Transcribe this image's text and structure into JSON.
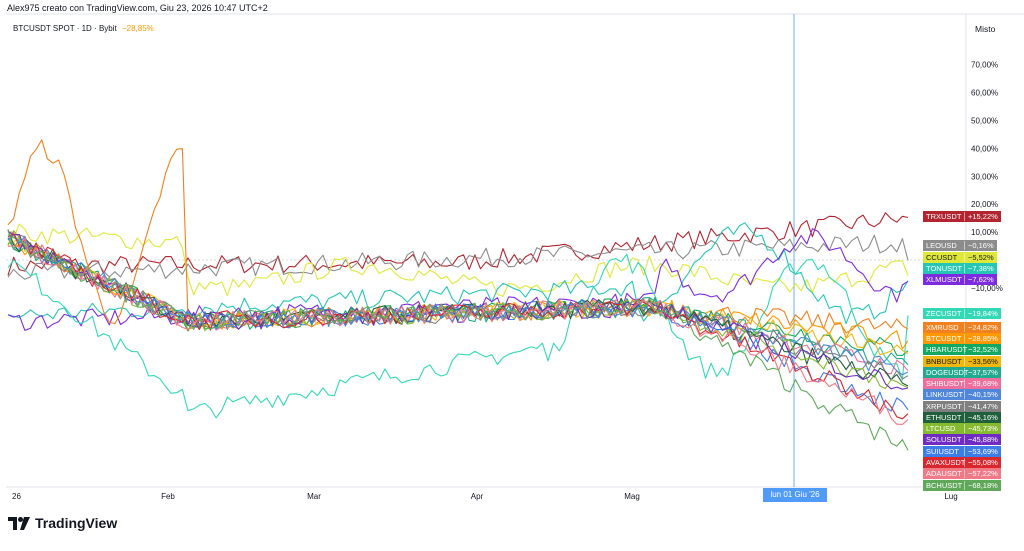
{
  "header": {
    "text": "Alex975 creato con TradingView.com, Giu 23, 2026 10:47 UTC+2"
  },
  "legend": {
    "symbol": "BTCUSDT SPOT · 1D · Bybit",
    "change": "−28,85%"
  },
  "scale_mode": "Misto",
  "brand": {
    "name": "TradingView"
  },
  "crosshair_date": "lun 01 Giu '26",
  "chart_data": {
    "type": "line",
    "title": "",
    "x_ticks": [
      "26",
      "Feb",
      "Mar",
      "Apr",
      "Mag",
      "Lug"
    ],
    "y_ticks": [
      "70,00%",
      "60,00%",
      "50,00%",
      "40,00%",
      "30,00%",
      "20,00%",
      "10,00%",
      "−10,00%"
    ],
    "ylim": [
      -100,
      80
    ],
    "grid": false,
    "series": [
      {
        "name": "TRXUSDT",
        "final": 15.22,
        "label": "+15,22%",
        "color": "#b2242f"
      },
      {
        "name": "LEOUSD",
        "final": -0.16,
        "label": "−0,16%",
        "color": "#8c8c8c"
      },
      {
        "name": "CCUSDT",
        "final": -5.52,
        "label": "−5,52%",
        "color": "#dfe838"
      },
      {
        "name": "TONUSDT",
        "final": -7.38,
        "label": "−7,38%",
        "color": "#26c6b5"
      },
      {
        "name": "XLMUSDT",
        "final": -7.62,
        "label": "−7,62%",
        "color": "#7d2be0"
      },
      {
        "name": "ZECUSDT",
        "final": -19.84,
        "label": "−19,84%",
        "color": "#33d8b7"
      },
      {
        "name": "XMRUSD",
        "final": -24.82,
        "label": "−24,82%",
        "color": "#f2801f"
      },
      {
        "name": "BTCUSDT",
        "final": -28.85,
        "label": "−28,85%",
        "color": "#ff9800"
      },
      {
        "name": "HBARUSDT",
        "final": -32.52,
        "label": "−32,52%",
        "color": "#12a85f"
      },
      {
        "name": "BNBUSDT",
        "final": -33.56,
        "label": "−33,56%",
        "color": "#f0b80e"
      },
      {
        "name": "DOGEUSDT",
        "final": -37.57,
        "label": "−37,57%",
        "color": "#21aa90"
      },
      {
        "name": "SHIBUSDT",
        "final": -39.68,
        "label": "−39,68%",
        "color": "#ef6f9c"
      },
      {
        "name": "LINKUSDT",
        "final": -40.15,
        "label": "−40,15%",
        "color": "#4f86d9"
      },
      {
        "name": "XRPUSDT",
        "final": -41.47,
        "label": "−41,47%",
        "color": "#808080"
      },
      {
        "name": "ETHUSDT",
        "final": -45.16,
        "label": "−45,16%",
        "color": "#1f5f3c"
      },
      {
        "name": "LTCUSD",
        "final": -45.73,
        "label": "−45,73%",
        "color": "#86ba30"
      },
      {
        "name": "SOLUSDT",
        "final": -45.88,
        "label": "−45,88%",
        "color": "#6f2bc2"
      },
      {
        "name": "SUIUSDT",
        "final": -53.69,
        "label": "−53,69%",
        "color": "#3d7de8"
      },
      {
        "name": "AVAXUSDT",
        "final": -55.08,
        "label": "−55,08%",
        "color": "#d9272e"
      },
      {
        "name": "ADAUSDT",
        "final": -57.22,
        "label": "−57,22%",
        "color": "#f27a86"
      },
      {
        "name": "BCHUSDT",
        "final": -68.18,
        "label": "−68,18%",
        "color": "#5fa85a"
      }
    ]
  }
}
